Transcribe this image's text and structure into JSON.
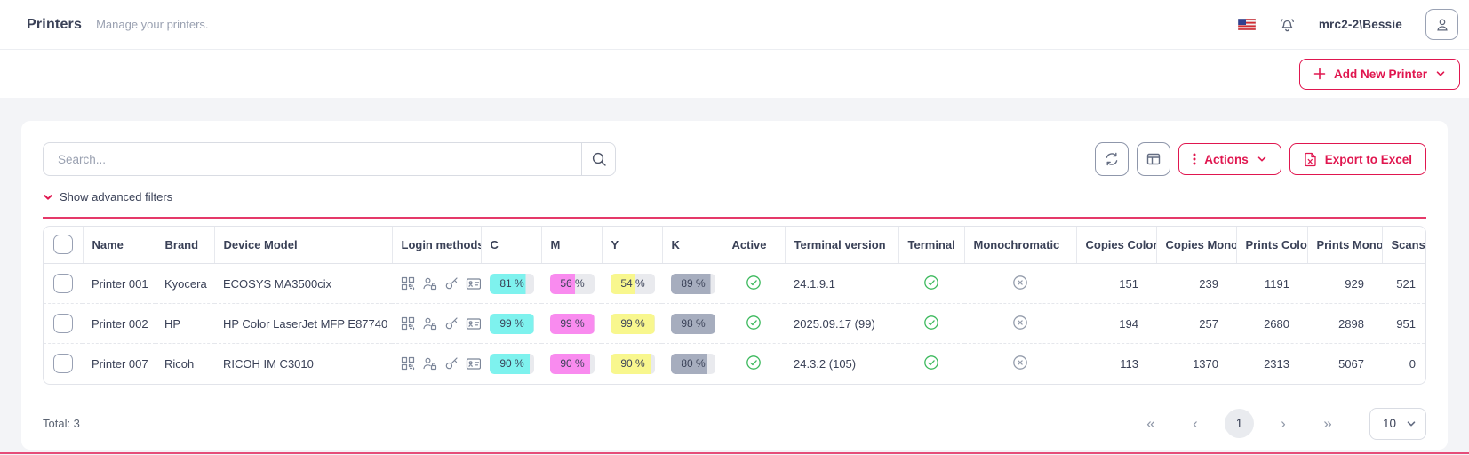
{
  "colors": {
    "accent": "#E0164F",
    "cyan": "#7EF2EE",
    "magenta": "#F98BEF",
    "yellow": "#F8F78E",
    "key_gray": "#A6ADBE",
    "badge_bg": "#E9EAEE",
    "success_green": "#3CB95D",
    "inactive_gray": "#949CAB"
  },
  "icons": {
    "language": "flag-us-icon",
    "notifications": "bell-icon",
    "profile": "user-icon",
    "add": "plus-icon",
    "expand": "chevron-down-icon",
    "search": "search-icon",
    "refresh": "refresh-icon",
    "columns": "columns-icon",
    "actions_menu": "dots-vertical-icon",
    "excel": "excel-file-icon",
    "active_true": "check-circle-icon",
    "flag_false": "x-circle-icon"
  },
  "header": {
    "title": "Printers",
    "subtitle": "Manage your printers.",
    "username": "mrc2-2\\Bessie"
  },
  "actionbar": {
    "add_button_label": "Add New Printer"
  },
  "toolbar": {
    "search_placeholder": "Search...",
    "actions_label": "Actions",
    "export_label": "Export to Excel",
    "advanced_filters_label": "Show advanced filters"
  },
  "table": {
    "columns": [
      "Name",
      "Brand",
      "Device Model",
      "Login methods",
      "C",
      "M",
      "Y",
      "K",
      "Active",
      "Terminal version",
      "Terminal",
      "Monochromatic",
      "Copies Color",
      "Copies Mono",
      "Prints Color",
      "Prints Mono",
      "Scans"
    ],
    "rows": [
      {
        "name": "Printer 001",
        "brand": "Kyocera",
        "model": "ECOSYS MA3500cix",
        "login_methods": [
          "qr-code-icon",
          "user-lock-icon",
          "key-icon",
          "id-card-icon"
        ],
        "c": 81,
        "m": 56,
        "y": 54,
        "k": 89,
        "active": true,
        "terminal_version": "24.1.9.1",
        "terminal": true,
        "monochromatic": false,
        "copies_color": "151",
        "copies_mono": "239",
        "prints_color": "1191",
        "prints_mono": "929",
        "scans": "521"
      },
      {
        "name": "Printer 002",
        "brand": "HP",
        "model": "HP Color LaserJet MFP E87740",
        "login_methods": [
          "qr-code-icon",
          "user-lock-icon",
          "key-icon",
          "id-card-icon"
        ],
        "c": 99,
        "m": 99,
        "y": 99,
        "k": 98,
        "active": true,
        "terminal_version": "2025.09.17 (99)",
        "terminal": true,
        "monochromatic": false,
        "copies_color": "194",
        "copies_mono": "257",
        "prints_color": "2680",
        "prints_mono": "2898",
        "scans": "951"
      },
      {
        "name": "Printer 007",
        "brand": "Ricoh",
        "model": "RICOH IM C3010",
        "login_methods": [
          "qr-code-icon",
          "user-lock-icon",
          "key-icon",
          "id-card-icon"
        ],
        "c": 90,
        "m": 90,
        "y": 90,
        "k": 80,
        "active": true,
        "terminal_version": "24.3.2 (105)",
        "terminal": true,
        "monochromatic": false,
        "copies_color": "113",
        "copies_mono": "1370",
        "prints_color": "2313",
        "prints_mono": "5067",
        "scans": "0"
      }
    ]
  },
  "footer": {
    "total_label": "Total: 3",
    "current_page": "1",
    "page_size": "10",
    "first_label": "«",
    "prev_label": "‹",
    "next_label": "›",
    "last_label": "»"
  }
}
